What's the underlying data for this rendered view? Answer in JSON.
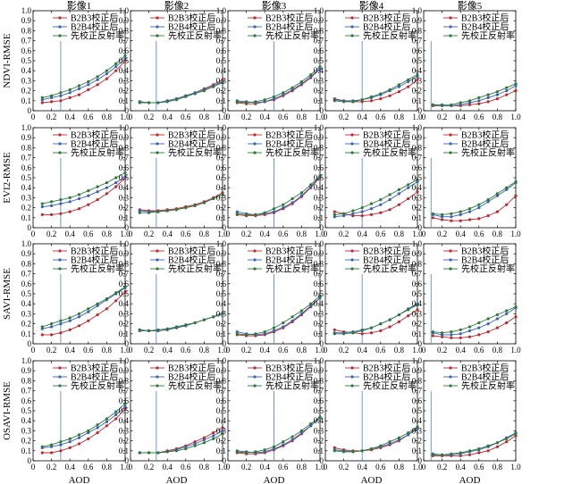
{
  "chart_data": {
    "type": "line",
    "layout": "grid 4 rows x 5 columns",
    "column_titles": [
      "影像1",
      "影像2",
      "影像3",
      "影像4",
      "影像5"
    ],
    "row_ylabels": [
      "NDVI-RMSE",
      "EVI2-RMSE",
      "SAVI-RMSE",
      "OSAVI-RMSE"
    ],
    "xlabel": "AOD",
    "xlim": [
      0,
      1.0
    ],
    "ylim": [
      0,
      1.0
    ],
    "xticks": [
      "0",
      "0.2",
      "0.4",
      "0.6",
      "0.8",
      "1.0"
    ],
    "yticks": [
      "0",
      "0.1",
      "0.2",
      "0.3",
      "0.4",
      "0.5",
      "0.6",
      "0.7",
      "0.8",
      "0.9",
      "1.0"
    ],
    "x": [
      0.1,
      0.2,
      0.3,
      0.4,
      0.5,
      0.6,
      0.7,
      0.8,
      0.9,
      1.0
    ],
    "series_names": [
      "B2B3校正后",
      "B2B4校正后",
      "先校正反射率"
    ],
    "series_colors": [
      "#c0282d",
      "#3a62b8",
      "#2c7a3a"
    ],
    "vline_color": "#5b8fd0",
    "vline_x_by_column": [
      0.3,
      0.28,
      0.5,
      0.4,
      0.08
    ],
    "legend_position": "top-left",
    "grid": false,
    "panels": [
      [
        {
          "series": [
            [
              0.08,
              0.09,
              0.1,
              0.13,
              0.16,
              0.21,
              0.26,
              0.32,
              0.4,
              0.5
            ],
            [
              0.11,
              0.13,
              0.15,
              0.18,
              0.22,
              0.26,
              0.31,
              0.37,
              0.44,
              0.52
            ],
            [
              0.13,
              0.15,
              0.18,
              0.21,
              0.25,
              0.29,
              0.34,
              0.4,
              0.47,
              0.55
            ]
          ]
        },
        {
          "series": [
            [
              0.09,
              0.08,
              0.08,
              0.1,
              0.12,
              0.15,
              0.18,
              0.22,
              0.26,
              0.31
            ],
            [
              0.09,
              0.08,
              0.08,
              0.1,
              0.12,
              0.15,
              0.18,
              0.21,
              0.25,
              0.29
            ],
            [
              0.08,
              0.08,
              0.08,
              0.09,
              0.11,
              0.14,
              0.17,
              0.2,
              0.24,
              0.28
            ]
          ]
        },
        {
          "series": [
            [
              0.08,
              0.07,
              0.07,
              0.09,
              0.11,
              0.15,
              0.2,
              0.26,
              0.33,
              0.42
            ],
            [
              0.1,
              0.09,
              0.08,
              0.09,
              0.12,
              0.16,
              0.21,
              0.27,
              0.34,
              0.42
            ],
            [
              0.09,
              0.08,
              0.09,
              0.11,
              0.14,
              0.18,
              0.23,
              0.29,
              0.36,
              0.44
            ]
          ]
        },
        {
          "series": [
            [
              0.12,
              0.1,
              0.09,
              0.09,
              0.1,
              0.12,
              0.15,
              0.19,
              0.24,
              0.31
            ],
            [
              0.11,
              0.1,
              0.1,
              0.11,
              0.13,
              0.16,
              0.2,
              0.24,
              0.29,
              0.34
            ],
            [
              0.1,
              0.09,
              0.09,
              0.11,
              0.14,
              0.17,
              0.21,
              0.26,
              0.31,
              0.36
            ]
          ]
        },
        {
          "series": [
            [
              0.05,
              0.05,
              0.05,
              0.05,
              0.06,
              0.07,
              0.09,
              0.12,
              0.16,
              0.2
            ],
            [
              0.06,
              0.05,
              0.05,
              0.06,
              0.08,
              0.1,
              0.13,
              0.16,
              0.2,
              0.25
            ],
            [
              0.06,
              0.06,
              0.06,
              0.08,
              0.1,
              0.13,
              0.16,
              0.19,
              0.23,
              0.27
            ]
          ]
        }
      ],
      [
        {
          "series": [
            [
              0.13,
              0.13,
              0.14,
              0.16,
              0.19,
              0.23,
              0.28,
              0.34,
              0.41,
              0.5
            ],
            [
              0.21,
              0.22,
              0.24,
              0.26,
              0.29,
              0.32,
              0.36,
              0.4,
              0.45,
              0.51
            ],
            [
              0.24,
              0.26,
              0.28,
              0.3,
              0.33,
              0.37,
              0.41,
              0.45,
              0.5,
              0.55
            ]
          ]
        },
        {
          "series": [
            [
              0.18,
              0.17,
              0.17,
              0.18,
              0.19,
              0.21,
              0.23,
              0.26,
              0.3,
              0.35
            ],
            [
              0.17,
              0.16,
              0.16,
              0.17,
              0.18,
              0.2,
              0.22,
              0.25,
              0.29,
              0.33
            ],
            [
              0.15,
              0.15,
              0.16,
              0.17,
              0.18,
              0.2,
              0.22,
              0.25,
              0.29,
              0.33
            ]
          ]
        },
        {
          "series": [
            [
              0.13,
              0.12,
              0.12,
              0.13,
              0.15,
              0.19,
              0.24,
              0.31,
              0.4,
              0.5
            ],
            [
              0.16,
              0.14,
              0.13,
              0.14,
              0.16,
              0.2,
              0.25,
              0.32,
              0.41,
              0.51
            ],
            [
              0.14,
              0.13,
              0.13,
              0.15,
              0.19,
              0.23,
              0.29,
              0.35,
              0.43,
              0.52
            ]
          ]
        },
        {
          "series": [
            [
              0.16,
              0.14,
              0.12,
              0.12,
              0.13,
              0.15,
              0.18,
              0.23,
              0.29,
              0.36
            ],
            [
              0.11,
              0.12,
              0.14,
              0.16,
              0.19,
              0.23,
              0.28,
              0.34,
              0.4,
              0.46
            ],
            [
              0.13,
              0.14,
              0.17,
              0.2,
              0.24,
              0.28,
              0.33,
              0.38,
              0.43,
              0.48
            ]
          ]
        },
        {
          "series": [
            [
              0.1,
              0.08,
              0.07,
              0.07,
              0.08,
              0.09,
              0.12,
              0.16,
              0.23,
              0.32
            ],
            [
              0.13,
              0.11,
              0.11,
              0.13,
              0.16,
              0.2,
              0.26,
              0.32,
              0.38,
              0.45
            ],
            [
              0.14,
              0.13,
              0.14,
              0.16,
              0.19,
              0.23,
              0.28,
              0.34,
              0.4,
              0.46
            ]
          ]
        }
      ],
      [
        {
          "series": [
            [
              0.09,
              0.09,
              0.11,
              0.14,
              0.18,
              0.23,
              0.29,
              0.35,
              0.43,
              0.52
            ],
            [
              0.15,
              0.17,
              0.2,
              0.23,
              0.27,
              0.32,
              0.38,
              0.44,
              0.5,
              0.56
            ],
            [
              0.17,
              0.2,
              0.23,
              0.26,
              0.3,
              0.35,
              0.4,
              0.45,
              0.51,
              0.57
            ]
          ]
        },
        {
          "series": [
            [
              0.14,
              0.13,
              0.13,
              0.14,
              0.16,
              0.18,
              0.21,
              0.24,
              0.27,
              0.3
            ],
            [
              0.14,
              0.13,
              0.13,
              0.14,
              0.16,
              0.18,
              0.21,
              0.24,
              0.27,
              0.3
            ],
            [
              0.13,
              0.13,
              0.14,
              0.15,
              0.17,
              0.19,
              0.21,
              0.24,
              0.27,
              0.31
            ]
          ]
        },
        {
          "series": [
            [
              0.09,
              0.08,
              0.08,
              0.09,
              0.12,
              0.16,
              0.22,
              0.29,
              0.37,
              0.46
            ],
            [
              0.12,
              0.1,
              0.09,
              0.1,
              0.13,
              0.17,
              0.23,
              0.3,
              0.38,
              0.46
            ],
            [
              0.1,
              0.09,
              0.1,
              0.12,
              0.16,
              0.21,
              0.27,
              0.33,
              0.4,
              0.48
            ]
          ]
        },
        {
          "series": [
            [
              0.14,
              0.12,
              0.11,
              0.1,
              0.11,
              0.13,
              0.17,
              0.22,
              0.28,
              0.34
            ],
            [
              0.11,
              0.11,
              0.12,
              0.14,
              0.16,
              0.2,
              0.24,
              0.29,
              0.35,
              0.4
            ],
            [
              0.1,
              0.1,
              0.11,
              0.13,
              0.16,
              0.2,
              0.24,
              0.29,
              0.34,
              0.39
            ]
          ]
        },
        {
          "series": [
            [
              0.08,
              0.07,
              0.06,
              0.06,
              0.07,
              0.09,
              0.12,
              0.16,
              0.21,
              0.27
            ],
            [
              0.11,
              0.09,
              0.09,
              0.1,
              0.13,
              0.16,
              0.2,
              0.25,
              0.3,
              0.36
            ],
            [
              0.12,
              0.11,
              0.12,
              0.14,
              0.17,
              0.21,
              0.25,
              0.29,
              0.33,
              0.37
            ]
          ]
        }
      ],
      [
        {
          "series": [
            [
              0.08,
              0.08,
              0.1,
              0.13,
              0.17,
              0.22,
              0.28,
              0.35,
              0.42,
              0.52
            ],
            [
              0.13,
              0.14,
              0.16,
              0.19,
              0.23,
              0.28,
              0.33,
              0.39,
              0.46,
              0.54
            ],
            [
              0.14,
              0.16,
              0.19,
              0.22,
              0.26,
              0.3,
              0.36,
              0.42,
              0.49,
              0.57
            ]
          ]
        },
        {
          "series": [
            [
              0.08,
              0.08,
              0.08,
              0.1,
              0.12,
              0.15,
              0.19,
              0.23,
              0.28,
              0.33
            ],
            [
              0.08,
              0.08,
              0.08,
              0.09,
              0.11,
              0.14,
              0.17,
              0.21,
              0.25,
              0.3
            ],
            [
              0.08,
              0.08,
              0.08,
              0.09,
              0.1,
              0.12,
              0.15,
              0.18,
              0.22,
              0.27
            ]
          ]
        },
        {
          "series": [
            [
              0.08,
              0.07,
              0.07,
              0.08,
              0.11,
              0.15,
              0.2,
              0.27,
              0.35,
              0.43
            ],
            [
              0.1,
              0.09,
              0.08,
              0.09,
              0.12,
              0.16,
              0.21,
              0.28,
              0.35,
              0.43
            ],
            [
              0.09,
              0.08,
              0.09,
              0.11,
              0.14,
              0.19,
              0.24,
              0.3,
              0.37,
              0.44
            ]
          ]
        },
        {
          "series": [
            [
              0.13,
              0.11,
              0.1,
              0.1,
              0.11,
              0.13,
              0.16,
              0.2,
              0.26,
              0.33
            ],
            [
              0.11,
              0.1,
              0.09,
              0.1,
              0.12,
              0.14,
              0.17,
              0.21,
              0.26,
              0.32
            ],
            [
              0.1,
              0.09,
              0.09,
              0.1,
              0.12,
              0.15,
              0.19,
              0.23,
              0.28,
              0.34
            ]
          ]
        },
        {
          "series": [
            [
              0.05,
              0.05,
              0.05,
              0.05,
              0.06,
              0.08,
              0.1,
              0.14,
              0.19,
              0.25
            ],
            [
              0.07,
              0.06,
              0.06,
              0.07,
              0.09,
              0.11,
              0.14,
              0.18,
              0.23,
              0.28
            ],
            [
              0.06,
              0.06,
              0.07,
              0.08,
              0.1,
              0.12,
              0.15,
              0.18,
              0.22,
              0.27
            ]
          ]
        }
      ]
    ]
  }
}
